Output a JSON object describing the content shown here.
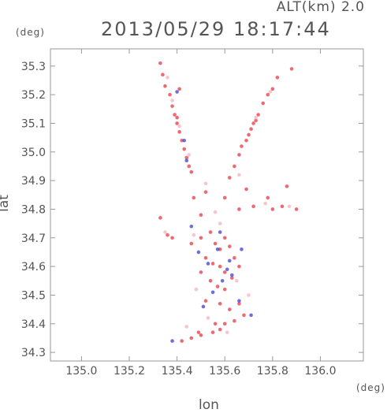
{
  "header": {
    "alt_label": "ALT(km)  2.0",
    "timestamp": "2013/05/29  18:17:44"
  },
  "chart_data": {
    "type": "scatter",
    "title": "2013/05/29  18:17:44",
    "xlabel": "lon",
    "ylabel": "lat",
    "x_unit": "(deg)",
    "y_unit": "(deg)",
    "xlim": [
      134.87,
      136.18
    ],
    "ylim": [
      34.27,
      35.36
    ],
    "x_ticks": [
      "135.0",
      "135.2",
      "135.4",
      "135.6",
      "135.8",
      "136.0"
    ],
    "y_ticks": [
      "34.3",
      "34.4",
      "34.5",
      "34.6",
      "34.7",
      "34.8",
      "34.9",
      "35.0",
      "35.1",
      "35.2",
      "35.3"
    ],
    "grid": false,
    "colors": {
      "positive": "#e8454f",
      "negative": "#4a4ad6",
      "neutral": "#f2b8c0"
    },
    "series": [
      {
        "name": "",
        "points": [
          [
            135.33,
            35.31
          ],
          [
            135.34,
            35.27
          ],
          [
            135.35,
            35.23
          ],
          [
            135.37,
            35.2
          ],
          [
            135.38,
            35.16
          ],
          [
            135.39,
            35.13
          ],
          [
            135.4,
            35.1
          ],
          [
            135.41,
            35.07
          ],
          [
            135.42,
            35.04
          ],
          [
            135.43,
            35.01
          ],
          [
            135.44,
            34.98
          ],
          [
            135.45,
            34.95
          ],
          [
            135.46,
            34.93
          ],
          [
            135.41,
            35.22
          ],
          [
            135.4,
            35.12
          ],
          [
            135.88,
            35.29
          ],
          [
            135.82,
            35.26
          ],
          [
            135.8,
            35.22
          ],
          [
            135.78,
            35.2
          ],
          [
            135.76,
            35.17
          ],
          [
            135.74,
            35.13
          ],
          [
            135.73,
            35.11
          ],
          [
            135.72,
            35.1
          ],
          [
            135.71,
            35.08
          ],
          [
            135.7,
            35.06
          ],
          [
            135.69,
            35.04
          ],
          [
            135.67,
            35.02
          ],
          [
            135.66,
            34.99
          ],
          [
            135.64,
            34.95
          ],
          [
            135.62,
            34.91
          ],
          [
            135.86,
            34.88
          ],
          [
            135.78,
            34.84
          ],
          [
            135.84,
            34.81
          ],
          [
            135.9,
            34.8
          ],
          [
            135.8,
            34.8
          ],
          [
            135.72,
            34.81
          ],
          [
            135.66,
            34.8
          ],
          [
            135.69,
            34.87
          ],
          [
            135.6,
            34.84
          ],
          [
            135.52,
            34.86
          ],
          [
            135.47,
            34.84
          ],
          [
            135.5,
            34.78
          ],
          [
            135.33,
            34.77
          ],
          [
            135.36,
            34.71
          ],
          [
            135.38,
            34.7
          ],
          [
            135.46,
            34.68
          ],
          [
            135.5,
            34.7
          ],
          [
            135.54,
            34.72
          ],
          [
            135.56,
            34.68
          ],
          [
            135.58,
            34.66
          ],
          [
            135.6,
            34.7
          ],
          [
            135.62,
            34.67
          ],
          [
            135.64,
            34.63
          ],
          [
            135.52,
            34.63
          ],
          [
            135.55,
            34.61
          ],
          [
            135.58,
            34.6
          ],
          [
            135.6,
            34.58
          ],
          [
            135.63,
            34.56
          ],
          [
            135.66,
            34.6
          ],
          [
            135.5,
            34.58
          ],
          [
            135.54,
            34.55
          ],
          [
            135.57,
            34.53
          ],
          [
            135.6,
            34.52
          ],
          [
            135.52,
            34.48
          ],
          [
            135.58,
            34.47
          ],
          [
            135.62,
            34.45
          ],
          [
            135.66,
            34.47
          ],
          [
            135.68,
            34.43
          ],
          [
            135.64,
            34.41
          ],
          [
            135.6,
            34.4
          ],
          [
            135.56,
            34.4
          ],
          [
            135.55,
            34.37
          ],
          [
            135.58,
            34.38
          ],
          [
            135.5,
            34.36
          ],
          [
            135.46,
            34.35
          ],
          [
            135.42,
            34.34
          ],
          [
            135.49,
            34.37
          ]
        ]
      },
      {
        "name": "",
        "points": [
          [
            135.4,
            35.21
          ],
          [
            135.43,
            35.04
          ],
          [
            135.44,
            34.97
          ],
          [
            135.61,
            34.59
          ],
          [
            135.57,
            34.66
          ],
          [
            135.66,
            34.48
          ],
          [
            135.53,
            34.61
          ],
          [
            135.58,
            34.72
          ],
          [
            135.62,
            34.62
          ],
          [
            135.49,
            34.65
          ],
          [
            135.71,
            34.43
          ],
          [
            135.63,
            34.57
          ],
          [
            135.55,
            34.51
          ],
          [
            135.51,
            34.46
          ],
          [
            135.46,
            34.74
          ],
          [
            135.67,
            34.66
          ],
          [
            135.59,
            34.55
          ],
          [
            135.38,
            34.34
          ]
        ]
      },
      {
        "name": "",
        "points": [
          [
            135.36,
            35.26
          ],
          [
            135.38,
            35.18
          ],
          [
            135.41,
            35.09
          ],
          [
            135.45,
            34.99
          ],
          [
            135.52,
            34.89
          ],
          [
            135.56,
            34.79
          ],
          [
            135.58,
            34.75
          ],
          [
            135.47,
            34.71
          ],
          [
            135.65,
            34.55
          ],
          [
            135.7,
            34.5
          ],
          [
            135.48,
            34.52
          ],
          [
            135.53,
            34.42
          ],
          [
            135.61,
            34.37
          ],
          [
            135.77,
            34.82
          ],
          [
            135.87,
            34.81
          ],
          [
            135.66,
            34.92
          ],
          [
            135.35,
            34.72
          ],
          [
            135.44,
            34.39
          ],
          [
            135.73,
            35.12
          ],
          [
            135.79,
            35.21
          ]
        ]
      }
    ]
  }
}
